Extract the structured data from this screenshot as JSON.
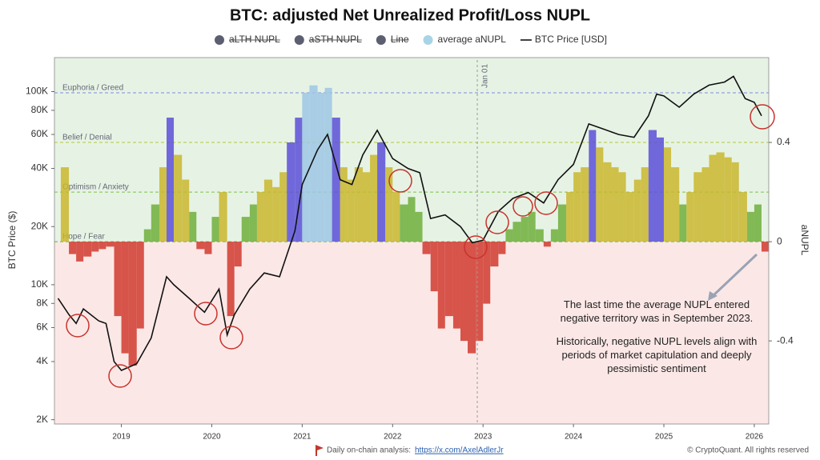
{
  "chart_data": {
    "type": "bar",
    "title": "BTC: adjusted Net Unrealized Profit/Loss NUPL",
    "y_label": "BTC Price ($)",
    "y2_label": "aNUPL",
    "log_y": true,
    "xlim": [
      2018.26,
      2026.16
    ],
    "xticks": [
      2019,
      2020,
      2021,
      2022,
      2023,
      2024,
      2025,
      2026
    ],
    "ylim": [
      1900,
      150000
    ],
    "yticks": [
      {
        "value": 2000,
        "label": "2K"
      },
      {
        "value": 4000,
        "label": "4K"
      },
      {
        "value": 6000,
        "label": "6K"
      },
      {
        "value": 8000,
        "label": "8K"
      },
      {
        "value": 10000,
        "label": "10K"
      },
      {
        "value": 20000,
        "label": "20K"
      },
      {
        "value": 40000,
        "label": "40K"
      },
      {
        "value": 60000,
        "label": "60K"
      },
      {
        "value": 80000,
        "label": "80K"
      },
      {
        "value": 100000,
        "label": "100K"
      }
    ],
    "y2lim": [
      -0.735,
      0.742
    ],
    "y2ticks": [
      0.4,
      0,
      -0.4
    ],
    "positive_background": "#e6f3e4",
    "negative_background": "#fbe8e6",
    "negative_bar_color": "#d0392e",
    "zones": [
      {
        "label": "Hope / Fear",
        "value": 0,
        "bar_color": "#6eae3c",
        "line_color": "#6eae3c"
      },
      {
        "label": "Optimism / Anxiety",
        "value": 0.2,
        "bar_color": "#c9b62e",
        "line_color": "#7cc04a"
      },
      {
        "label": "Belief / Denial",
        "value": 0.4,
        "bar_color": "#5a4fd8",
        "line_color": "#b5c63a"
      },
      {
        "label": "Euphoria / Greed",
        "value": 0.6,
        "bar_color": "#9cc6e4",
        "line_color": "#7d8ae0"
      }
    ],
    "legend_hidden": [
      {
        "name": "aLTH NUPL",
        "color": "#5c5f70"
      },
      {
        "name": "aSTH NUPL",
        "color": "#5c5f70"
      },
      {
        "name": "Line",
        "color": "#5c5f70"
      }
    ],
    "series": [
      {
        "name": "average aNUPL",
        "type": "bar",
        "axis": "y2",
        "color": "#a8d4e8",
        "x": [
          2018.33,
          2018.42,
          2018.5,
          2018.58,
          2018.67,
          2018.75,
          2018.83,
          2018.92,
          2019.0,
          2019.08,
          2019.17,
          2019.25,
          2019.33,
          2019.42,
          2019.5,
          2019.58,
          2019.67,
          2019.75,
          2019.83,
          2019.92,
          2020.0,
          2020.08,
          2020.17,
          2020.25,
          2020.33,
          2020.42,
          2020.5,
          2020.58,
          2020.67,
          2020.75,
          2020.83,
          2020.92,
          2021.0,
          2021.08,
          2021.17,
          2021.25,
          2021.33,
          2021.42,
          2021.5,
          2021.58,
          2021.67,
          2021.75,
          2021.83,
          2021.92,
          2022.0,
          2022.08,
          2022.17,
          2022.25,
          2022.33,
          2022.42,
          2022.5,
          2022.58,
          2022.67,
          2022.75,
          2022.83,
          2022.92,
          2023.0,
          2023.08,
          2023.17,
          2023.25,
          2023.33,
          2023.42,
          2023.5,
          2023.58,
          2023.67,
          2023.75,
          2023.83,
          2023.92,
          2024.0,
          2024.08,
          2024.17,
          2024.25,
          2024.33,
          2024.42,
          2024.5,
          2024.58,
          2024.67,
          2024.75,
          2024.83,
          2024.92,
          2025.0,
          2025.08,
          2025.17,
          2025.25,
          2025.33,
          2025.42,
          2025.5,
          2025.58,
          2025.67,
          2025.75,
          2025.83,
          2025.92,
          2026.0,
          2026.08
        ],
        "values": [
          0.3,
          -0.05,
          -0.08,
          -0.06,
          -0.04,
          -0.03,
          -0.02,
          -0.3,
          -0.45,
          -0.5,
          -0.35,
          0.05,
          0.15,
          0.3,
          0.5,
          0.35,
          0.25,
          0.12,
          -0.03,
          -0.05,
          0.1,
          0.2,
          -0.3,
          -0.1,
          0.1,
          0.15,
          0.2,
          0.25,
          0.22,
          0.28,
          0.4,
          0.5,
          0.6,
          0.63,
          0.6,
          0.62,
          0.5,
          0.3,
          0.25,
          0.3,
          0.28,
          0.35,
          0.4,
          0.3,
          0.2,
          0.15,
          0.18,
          0.12,
          -0.05,
          -0.2,
          -0.35,
          -0.3,
          -0.35,
          -0.4,
          -0.45,
          -0.4,
          -0.25,
          -0.1,
          -0.05,
          0.05,
          0.08,
          0.1,
          0.12,
          0.05,
          -0.02,
          0.05,
          0.15,
          0.2,
          0.28,
          0.3,
          0.45,
          0.38,
          0.32,
          0.3,
          0.28,
          0.2,
          0.25,
          0.3,
          0.45,
          0.42,
          0.38,
          0.3,
          0.15,
          0.2,
          0.28,
          0.3,
          0.35,
          0.36,
          0.34,
          0.32,
          0.2,
          0.12,
          0.15,
          -0.04
        ]
      },
      {
        "name": "BTC Price [USD]",
        "type": "line",
        "color": "#111111",
        "x": [
          2018.3,
          2018.42,
          2018.5,
          2018.58,
          2018.75,
          2018.83,
          2018.92,
          2019.0,
          2019.17,
          2019.33,
          2019.5,
          2019.58,
          2019.75,
          2019.92,
          2020.08,
          2020.17,
          2020.25,
          2020.42,
          2020.58,
          2020.75,
          2020.92,
          2021.0,
          2021.17,
          2021.28,
          2021.42,
          2021.55,
          2021.67,
          2021.83,
          2022.0,
          2022.17,
          2022.3,
          2022.42,
          2022.58,
          2022.75,
          2022.88,
          2023.0,
          2023.17,
          2023.33,
          2023.5,
          2023.67,
          2023.83,
          2024.0,
          2024.17,
          2024.33,
          2024.5,
          2024.67,
          2024.83,
          2024.92,
          2025.0,
          2025.17,
          2025.33,
          2025.5,
          2025.67,
          2025.77,
          2025.9,
          2026.0,
          2026.08
        ],
        "values": [
          8500,
          7000,
          6300,
          7500,
          6500,
          6300,
          4000,
          3600,
          3900,
          5300,
          11000,
          10000,
          8500,
          7200,
          9500,
          5500,
          7000,
          9500,
          11500,
          11000,
          19000,
          33000,
          50000,
          60000,
          35000,
          33000,
          47000,
          63000,
          45000,
          40000,
          38000,
          22000,
          23000,
          20000,
          16500,
          17000,
          24000,
          28000,
          30000,
          26500,
          35000,
          42000,
          68000,
          64000,
          60000,
          58000,
          75000,
          97000,
          95000,
          83000,
          97000,
          108000,
          112000,
          120000,
          92000,
          88000,
          75000
        ]
      }
    ],
    "annotation_date": "Jan 01",
    "note_1": "The last time the average NUPL entered negative territory was in September 2023.",
    "note_2": "Historically, negative NUPL levels align with periods of market capitulation and deeply pessimistic sentiment",
    "footer_text": "Daily on-chain analysis:",
    "footer_link": "https://x.com/AxelAdlerJr",
    "copyright": "© CryptoQuant. All rights reserved"
  }
}
